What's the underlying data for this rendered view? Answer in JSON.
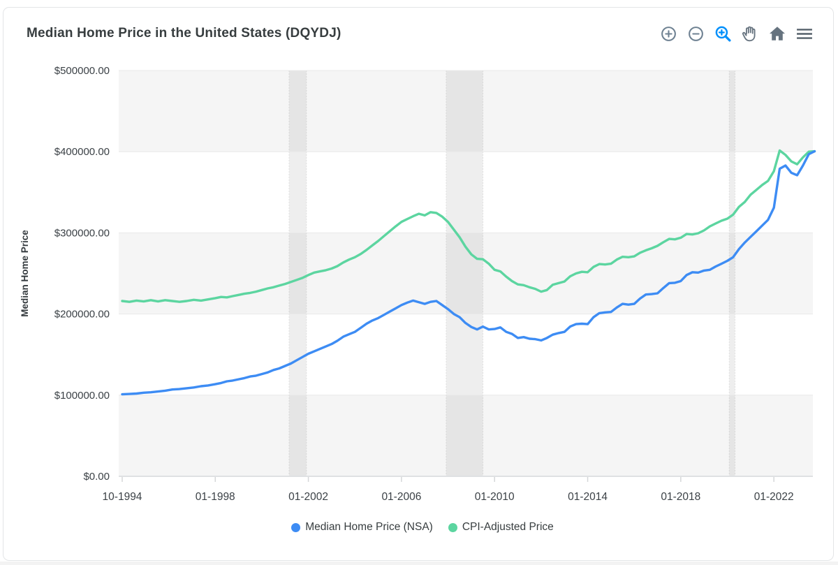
{
  "card": {
    "title": "Median Home Price in the United States (DQYDJ)",
    "toolbar": {
      "icon_color": "#6e8192",
      "active_color": "#008ffb",
      "icons": [
        {
          "name": "zoom-in",
          "active": false
        },
        {
          "name": "zoom-out",
          "active": false
        },
        {
          "name": "selection-zoom",
          "active": true
        },
        {
          "name": "pan",
          "active": false
        },
        {
          "name": "home",
          "active": false
        },
        {
          "name": "menu",
          "active": false
        }
      ]
    }
  },
  "chart_data": {
    "type": "line",
    "title": "Median Home Price in the United States (DQYDJ)",
    "xlabel": "",
    "ylabel": "Median Home Price",
    "ylim": [
      0,
      500000
    ],
    "grid": {
      "row_stripes": true,
      "stripe_color": "#f5f5f5",
      "gridline_color": "#e9e9e9"
    },
    "legend_position": "bottom",
    "yticks": [
      {
        "label": "$500000.00",
        "value": 500000
      },
      {
        "label": "$400000.00",
        "value": 400000
      },
      {
        "label": "$300000.00",
        "value": 300000
      },
      {
        "label": "$200000.00",
        "value": 200000
      },
      {
        "label": "$100000.00",
        "value": 100000
      },
      {
        "label": "$0.00",
        "value": 0
      }
    ],
    "xticks": [
      {
        "label": "10-1994",
        "t": 1994.75
      },
      {
        "label": "01-1998",
        "t": 1998.0
      },
      {
        "label": "01-2002",
        "t": 2002.0
      },
      {
        "label": "01-2006",
        "t": 2006.0
      },
      {
        "label": "01-2010",
        "t": 2010.0
      },
      {
        "label": "01-2014",
        "t": 2014.0
      },
      {
        "label": "01-2018",
        "t": 2018.0
      },
      {
        "label": "01-2022",
        "t": 2022.0
      }
    ],
    "x_start": 1994.75,
    "x_step": 0.25,
    "x_end": 2023.75,
    "x_frequency": "quarterly",
    "units": "USD, series values stored in thousands of dollars",
    "recession_bands": [
      {
        "label": "2001 recession",
        "from": 2001.17,
        "to": 2001.92
      },
      {
        "label": "2007-2009 recession",
        "from": 2007.92,
        "to": 2009.5
      },
      {
        "label": "2020 recession",
        "from": 2020.08,
        "to": 2020.33
      }
    ],
    "series": [
      {
        "name": "Median Home Price (NSA)",
        "color": "#3d8cf4",
        "values_thousands": [
          101,
          101.5,
          102,
          103,
          103.5,
          104.5,
          105.5,
          107,
          107.5,
          108.5,
          109.5,
          111,
          112,
          113.5,
          115,
          117,
          118,
          119.5,
          121,
          123,
          124,
          126,
          128,
          131,
          133,
          136,
          139,
          143,
          147,
          151,
          154,
          157,
          160,
          163,
          167,
          172,
          175,
          178,
          183,
          188,
          192,
          195,
          199,
          203,
          207,
          211,
          214,
          216.5,
          214.5,
          212.5,
          215,
          216,
          211,
          206,
          200,
          196,
          189,
          184,
          181,
          184.5,
          181,
          181.5,
          183.5,
          178,
          175.5,
          170.5,
          171.5,
          169.5,
          169,
          167.5,
          170.5,
          174.5,
          176.5,
          178,
          184.5,
          187.5,
          188,
          187.5,
          196,
          201,
          202,
          202.5,
          208,
          212.5,
          211.5,
          212.5,
          219,
          224,
          224.5,
          225.5,
          232,
          238,
          238.5,
          240.5,
          248,
          251.5,
          251,
          253.5,
          254.5,
          258.5,
          262,
          265.5,
          270,
          280,
          288,
          295,
          302,
          309,
          316,
          331,
          379,
          383,
          374,
          371,
          383,
          397,
          400.5
        ]
      },
      {
        "name": "CPI-Adjusted Price",
        "color": "#5cd5a0",
        "values_thousands": [
          216,
          215,
          216.5,
          215.5,
          217,
          215.5,
          217,
          216,
          215,
          216,
          217.5,
          216.5,
          218,
          219.5,
          221,
          220.5,
          222,
          223.5,
          225,
          226,
          227.5,
          229.5,
          231.5,
          233,
          235,
          237,
          239.5,
          242,
          244.5,
          248,
          251,
          252.5,
          254,
          256,
          259,
          263.5,
          267,
          270,
          274,
          279,
          284.5,
          290,
          296,
          302,
          308,
          313.5,
          317,
          320.5,
          323.5,
          321.5,
          325.5,
          324.5,
          320,
          313.5,
          304,
          294.5,
          283,
          273.5,
          268,
          267.5,
          262,
          254.5,
          252.5,
          246,
          240.5,
          236.5,
          235.5,
          233,
          231,
          227.5,
          229.5,
          236,
          238,
          240,
          246.5,
          250,
          252,
          251.5,
          258,
          261.5,
          261,
          262,
          267,
          270.5,
          270,
          271,
          275.5,
          278.5,
          281,
          284,
          288.5,
          292.5,
          292,
          294,
          298.5,
          298,
          299.5,
          303,
          308,
          311.5,
          315,
          317.5,
          322.5,
          332,
          338,
          347,
          353,
          359,
          364,
          376,
          401.5,
          396,
          388,
          384.5,
          393,
          400,
          400.5
        ]
      }
    ]
  }
}
